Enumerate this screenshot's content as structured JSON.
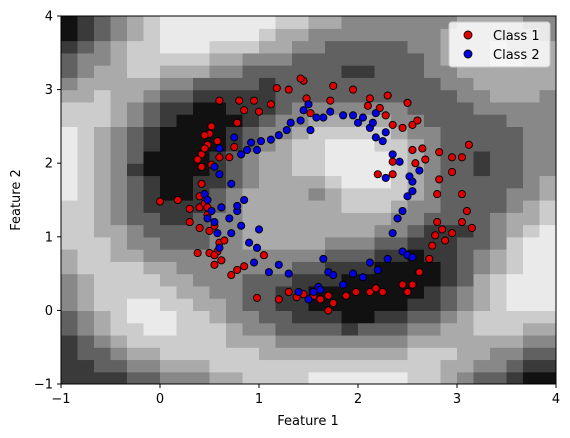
{
  "chart_data": {
    "type": "scatter",
    "title": "",
    "xlabel": "Feature 1",
    "ylabel": "Feature 2",
    "xlim": [
      -1,
      4
    ],
    "ylim": [
      -1,
      4
    ],
    "xticks": [
      "−1",
      "0",
      "1",
      "2",
      "3",
      "4"
    ],
    "yticks": [
      "−1",
      "0",
      "1",
      "2",
      "3",
      "4"
    ],
    "xtick_values": [
      -1,
      0,
      1,
      2,
      3,
      4
    ],
    "ytick_values": [
      -1,
      0,
      1,
      2,
      3,
      4
    ],
    "grid": false,
    "legend": "top-right",
    "background": "decision-boundary contour, grayscale",
    "series": [
      {
        "name": "Class 1",
        "color": "#e00000",
        "points": [
          [
            0.0,
            1.48
          ],
          [
            0.18,
            1.5
          ],
          [
            0.3,
            1.38
          ],
          [
            0.3,
            1.2
          ],
          [
            0.38,
            0.78
          ],
          [
            0.4,
            1.4
          ],
          [
            0.45,
            1.45
          ],
          [
            0.48,
            1.4
          ],
          [
            0.48,
            1.3
          ],
          [
            0.5,
            1.08
          ],
          [
            0.5,
            0.78
          ],
          [
            0.55,
            0.62
          ],
          [
            0.58,
            0.8
          ],
          [
            0.62,
            0.68
          ],
          [
            0.6,
            0.92
          ],
          [
            0.72,
            0.48
          ],
          [
            0.78,
            0.55
          ],
          [
            0.85,
            0.6
          ],
          [
            0.98,
            0.17
          ],
          [
            1.05,
            0.75
          ],
          [
            1.2,
            0.15
          ],
          [
            1.3,
            0.25
          ],
          [
            1.38,
            0.18
          ],
          [
            1.45,
            0.22
          ],
          [
            1.55,
            0.2
          ],
          [
            1.62,
            0.15
          ],
          [
            1.7,
            0.2
          ],
          [
            1.75,
            0.1
          ],
          [
            1.7,
            0.0
          ],
          [
            1.88,
            0.2
          ],
          [
            1.98,
            0.25
          ],
          [
            2.12,
            0.25
          ],
          [
            2.18,
            0.3
          ],
          [
            2.25,
            0.25
          ],
          [
            2.45,
            0.35
          ],
          [
            2.5,
            0.25
          ],
          [
            2.55,
            0.35
          ],
          [
            2.62,
            0.52
          ],
          [
            2.72,
            0.7
          ],
          [
            2.75,
            0.88
          ],
          [
            2.78,
            1.02
          ],
          [
            2.85,
            1.1
          ],
          [
            2.8,
            1.2
          ],
          [
            2.88,
            0.95
          ],
          [
            2.95,
            1.05
          ],
          [
            3.05,
            1.2
          ],
          [
            3.1,
            1.35
          ],
          [
            3.15,
            1.12
          ],
          [
            2.95,
            1.88
          ],
          [
            2.8,
            1.58
          ],
          [
            2.82,
            1.78
          ],
          [
            3.05,
            1.58
          ],
          [
            2.95,
            2.08
          ],
          [
            3.05,
            2.08
          ],
          [
            2.82,
            2.15
          ],
          [
            2.68,
            2.05
          ],
          [
            2.65,
            2.2
          ],
          [
            2.58,
            2.0
          ],
          [
            3.12,
            2.25
          ],
          [
            2.55,
            2.18
          ],
          [
            2.35,
            2.02
          ],
          [
            2.35,
            1.85
          ],
          [
            2.2,
            1.85
          ],
          [
            2.55,
            2.52
          ],
          [
            2.6,
            2.58
          ],
          [
            2.45,
            2.48
          ],
          [
            2.5,
            2.82
          ],
          [
            2.35,
            2.52
          ],
          [
            2.28,
            2.65
          ],
          [
            2.22,
            2.75
          ],
          [
            2.3,
            2.92
          ],
          [
            2.1,
            2.78
          ],
          [
            2.12,
            2.88
          ],
          [
            1.95,
            3.0
          ],
          [
            1.75,
            3.05
          ],
          [
            1.72,
            2.85
          ],
          [
            1.48,
            2.88
          ],
          [
            1.52,
            2.68
          ],
          [
            1.45,
            3.12
          ],
          [
            1.42,
            3.15
          ],
          [
            1.3,
            3.0
          ],
          [
            1.18,
            3.02
          ],
          [
            1.12,
            2.8
          ],
          [
            1.0,
            2.7
          ],
          [
            0.95,
            2.85
          ],
          [
            0.85,
            2.72
          ],
          [
            0.8,
            2.85
          ],
          [
            0.78,
            2.55
          ],
          [
            0.6,
            2.85
          ],
          [
            0.58,
            2.3
          ],
          [
            0.52,
            2.5
          ],
          [
            0.5,
            2.4
          ],
          [
            0.48,
            2.25
          ],
          [
            0.45,
            2.38
          ],
          [
            0.42,
            2.12
          ],
          [
            0.38,
            2.05
          ],
          [
            0.42,
            1.95
          ],
          [
            0.45,
            2.2
          ],
          [
            0.52,
            1.98
          ],
          [
            0.6,
            2.08
          ],
          [
            0.7,
            2.08
          ],
          [
            0.75,
            2.22
          ],
          [
            0.42,
            1.72
          ],
          [
            0.4,
            1.55
          ],
          [
            0.4,
            1.12
          ],
          [
            0.55,
            1.15
          ],
          [
            0.55,
            0.75
          ],
          [
            0.65,
            0.95
          ]
        ]
      },
      {
        "name": "Class 2",
        "color": "#0000e0",
        "points": [
          [
            0.45,
            1.58
          ],
          [
            0.48,
            1.5
          ],
          [
            0.48,
            1.25
          ],
          [
            0.52,
            1.35
          ],
          [
            0.55,
            1.2
          ],
          [
            0.58,
            1.05
          ],
          [
            0.6,
            0.85
          ],
          [
            0.62,
            1.4
          ],
          [
            0.7,
            1.25
          ],
          [
            0.72,
            1.05
          ],
          [
            0.78,
            1.35
          ],
          [
            0.82,
            1.15
          ],
          [
            0.85,
            1.5
          ],
          [
            0.9,
            0.92
          ],
          [
            0.95,
            0.65
          ],
          [
            0.98,
            0.85
          ],
          [
            1.0,
            1.1
          ],
          [
            1.1,
            0.52
          ],
          [
            1.2,
            0.62
          ],
          [
            1.3,
            0.5
          ],
          [
            1.4,
            0.25
          ],
          [
            1.5,
            0.15
          ],
          [
            1.55,
            0.25
          ],
          [
            1.6,
            0.32
          ],
          [
            1.62,
            0.28
          ],
          [
            1.65,
            0.7
          ],
          [
            1.7,
            0.52
          ],
          [
            1.75,
            0.48
          ],
          [
            1.85,
            0.35
          ],
          [
            1.95,
            0.5
          ],
          [
            2.05,
            0.45
          ],
          [
            2.12,
            0.65
          ],
          [
            2.2,
            0.55
          ],
          [
            2.3,
            0.7
          ],
          [
            2.45,
            0.8
          ],
          [
            2.5,
            0.75
          ],
          [
            2.55,
            0.72
          ],
          [
            2.35,
            1.05
          ],
          [
            2.4,
            1.25
          ],
          [
            2.45,
            1.35
          ],
          [
            2.5,
            1.55
          ],
          [
            2.55,
            1.62
          ],
          [
            2.55,
            1.75
          ],
          [
            2.62,
            1.9
          ],
          [
            2.52,
            1.82
          ],
          [
            2.28,
            1.8
          ],
          [
            2.42,
            2.02
          ],
          [
            2.35,
            2.12
          ],
          [
            2.25,
            2.3
          ],
          [
            2.18,
            2.35
          ],
          [
            2.28,
            2.42
          ],
          [
            2.12,
            2.48
          ],
          [
            2.0,
            2.55
          ],
          [
            2.05,
            2.62
          ],
          [
            1.95,
            2.65
          ],
          [
            2.18,
            2.68
          ],
          [
            2.15,
            2.55
          ],
          [
            1.85,
            2.65
          ],
          [
            1.72,
            2.7
          ],
          [
            1.65,
            2.62
          ],
          [
            1.58,
            2.62
          ],
          [
            1.45,
            2.72
          ],
          [
            1.42,
            2.58
          ],
          [
            1.5,
            2.8
          ],
          [
            1.52,
            2.45
          ],
          [
            1.32,
            2.55
          ],
          [
            1.28,
            2.45
          ],
          [
            1.2,
            2.38
          ],
          [
            1.12,
            2.32
          ],
          [
            1.02,
            2.3
          ],
          [
            0.98,
            2.18
          ],
          [
            0.92,
            2.28
          ],
          [
            0.88,
            2.18
          ],
          [
            0.82,
            2.12
          ],
          [
            0.75,
            2.35
          ],
          [
            0.6,
            2.2
          ],
          [
            0.55,
            1.95
          ],
          [
            0.6,
            1.85
          ],
          [
            0.72,
            1.72
          ],
          [
            0.78,
            1.42
          ]
        ]
      }
    ]
  }
}
